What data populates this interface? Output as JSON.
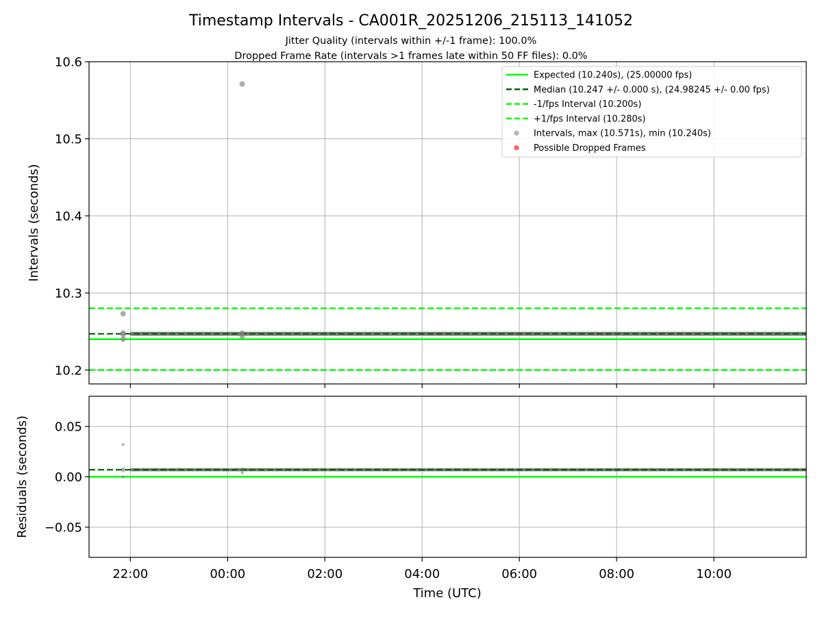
{
  "colors": {
    "expected": "#00ff00",
    "median": "#006400",
    "bounds": "#00ff00",
    "points": "#808080",
    "dropped": "#ff0000",
    "grid": "#b0b0b0"
  },
  "chart_data": {
    "type": "scatter",
    "title": "Timestamp Intervals - CA001R_20251206_215113_141052",
    "subtitle_1": "Jitter Quality (intervals within +/-1 frame): 100.0%",
    "subtitle_2": "Dropped Frame Rate (intervals >1 frames late within 50 FF files): 0.0%",
    "xlabel": "Time (UTC)",
    "x_range_hours": [
      -2.85,
      11.9
    ],
    "x_ticks": [
      {
        "hours": -2.0,
        "label": "22:00"
      },
      {
        "hours": 0.0,
        "label": "00:00"
      },
      {
        "hours": 2.0,
        "label": "02:00"
      },
      {
        "hours": 4.0,
        "label": "04:00"
      },
      {
        "hours": 6.0,
        "label": "06:00"
      },
      {
        "hours": 8.0,
        "label": "08:00"
      },
      {
        "hours": 10.0,
        "label": "10:00"
      }
    ],
    "top": {
      "ylabel": "Intervals (seconds)",
      "ylim": [
        10.182,
        10.6
      ],
      "y_ticks": [
        {
          "value": 10.2,
          "label": "10.2"
        },
        {
          "value": 10.3,
          "label": "10.3"
        },
        {
          "value": 10.4,
          "label": "10.4"
        },
        {
          "value": 10.5,
          "label": "10.5"
        },
        {
          "value": 10.6,
          "label": "10.6"
        }
      ],
      "expected": 10.24,
      "median": 10.247,
      "lower_bound": 10.2,
      "upper_bound": 10.28,
      "band": {
        "x_start_hours": -2.0,
        "x_end_hours": 11.9,
        "y_low": 10.2445,
        "y_high": 10.2495
      },
      "points": [
        {
          "x": -2.15,
          "y": 10.273
        },
        {
          "x": -2.15,
          "y": 10.248
        },
        {
          "x": -2.15,
          "y": 10.246
        },
        {
          "x": -2.15,
          "y": 10.24
        },
        {
          "x": 0.3,
          "y": 10.571
        },
        {
          "x": 0.3,
          "y": 10.248
        },
        {
          "x": 0.3,
          "y": 10.244
        }
      ]
    },
    "bottom": {
      "ylabel": "Residuals (seconds)",
      "ylim": [
        -0.08,
        0.08
      ],
      "y_ticks": [
        {
          "value": 0.05,
          "label": "0.05"
        },
        {
          "value": 0.0,
          "label": "0.00"
        },
        {
          "value": -0.05,
          "label": "−0.05"
        }
      ],
      "expected": 0.0,
      "median": 0.007,
      "band": {
        "x_start_hours": -2.0,
        "x_end_hours": 11.9,
        "y_low": 0.0055,
        "y_high": 0.0085
      },
      "points": [
        {
          "x": -2.15,
          "y": 0.032
        },
        {
          "x": -2.15,
          "y": 0.008
        },
        {
          "x": -2.15,
          "y": 0.006
        },
        {
          "x": -2.15,
          "y": 0.0
        },
        {
          "x": 0.3,
          "y": 0.008
        },
        {
          "x": 0.3,
          "y": 0.004
        }
      ]
    },
    "legend": {
      "placement": "top-right",
      "entries": [
        {
          "kind": "solid",
          "color_key": "expected",
          "label": "Expected (10.240s), (25.00000 fps)"
        },
        {
          "kind": "dashed",
          "color_key": "median",
          "label": "Median (10.247 +/- 0.000 s), (24.98245 +/- 0.00 fps)"
        },
        {
          "kind": "dashed",
          "color_key": "bounds",
          "label": "-1/fps Interval (10.200s)"
        },
        {
          "kind": "dashed",
          "color_key": "bounds",
          "label": "+1/fps Interval (10.280s)"
        },
        {
          "kind": "dot",
          "color_key": "points",
          "label": "Intervals, max (10.571s), min (10.240s)"
        },
        {
          "kind": "dot",
          "color_key": "dropped",
          "label": "Possible Dropped Frames"
        }
      ]
    }
  }
}
